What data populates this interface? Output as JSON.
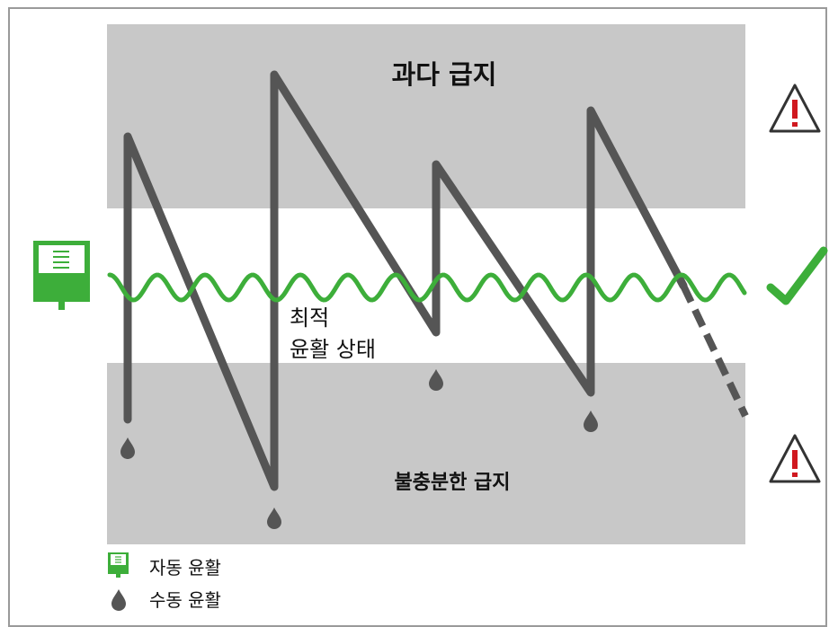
{
  "zones": {
    "over": {
      "label": "과다 급지"
    },
    "optimal": {
      "label_line1": "최적",
      "label_line2": "윤활 상태"
    },
    "under": {
      "label": "불충분한 급지"
    }
  },
  "legend": {
    "auto": {
      "label": "자동 윤활",
      "icon": "lubricator-icon"
    },
    "manual": {
      "label": "수동 윤활",
      "icon": "drop-icon"
    }
  },
  "colors": {
    "band_gray": "#c8c8c8",
    "manual_line": "#555555",
    "auto_line": "#3dae3a",
    "warning_red": "#d0181f",
    "check_green": "#3dae3a"
  }
}
